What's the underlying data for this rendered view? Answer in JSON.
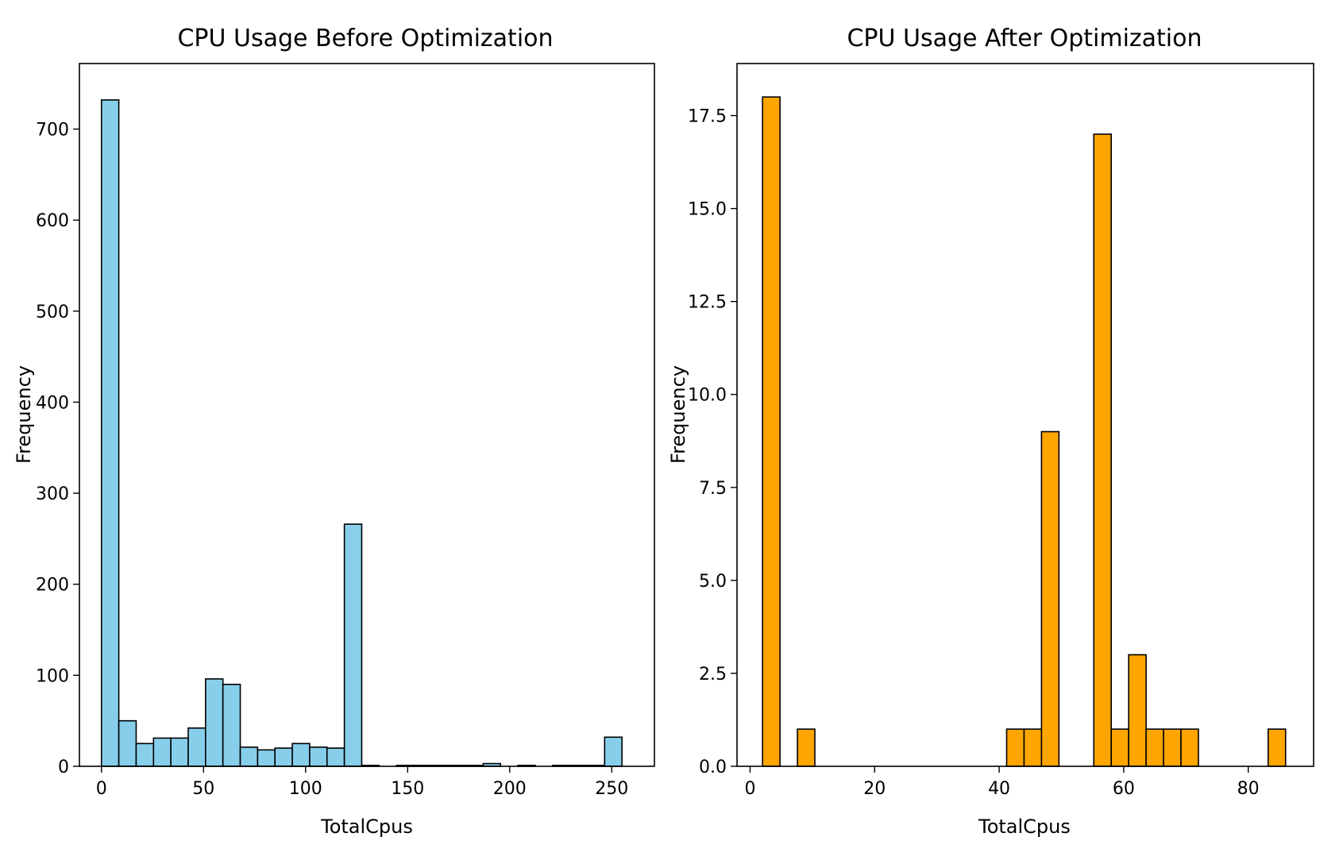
{
  "chart_data": [
    {
      "type": "bar",
      "title": "CPU Usage Before Optimization",
      "xlabel": "TotalCpus",
      "ylabel": "Frequency",
      "xlim": [
        -10.8,
        270.9
      ],
      "ylim": [
        0,
        772
      ],
      "xticks": [
        0,
        50,
        100,
        150,
        200,
        250
      ],
      "yticks": [
        0,
        100,
        200,
        300,
        400,
        500,
        600,
        700
      ],
      "color": "#87CEEB",
      "bins": [
        {
          "start": 0.0,
          "end": 8.5,
          "value": 732
        },
        {
          "start": 8.5,
          "end": 17.0,
          "value": 50
        },
        {
          "start": 17.0,
          "end": 25.5,
          "value": 25
        },
        {
          "start": 25.5,
          "end": 34.0,
          "value": 31
        },
        {
          "start": 34.0,
          "end": 42.5,
          "value": 31
        },
        {
          "start": 42.5,
          "end": 51.0,
          "value": 42
        },
        {
          "start": 51.0,
          "end": 59.5,
          "value": 96
        },
        {
          "start": 59.5,
          "end": 68.0,
          "value": 90
        },
        {
          "start": 68.0,
          "end": 76.5,
          "value": 21
        },
        {
          "start": 76.5,
          "end": 85.0,
          "value": 18
        },
        {
          "start": 85.0,
          "end": 93.5,
          "value": 20
        },
        {
          "start": 93.5,
          "end": 102.0,
          "value": 25
        },
        {
          "start": 102.0,
          "end": 110.5,
          "value": 21
        },
        {
          "start": 110.5,
          "end": 119.0,
          "value": 20
        },
        {
          "start": 119.0,
          "end": 127.5,
          "value": 266
        },
        {
          "start": 127.5,
          "end": 136.0,
          "value": 1
        },
        {
          "start": 136.0,
          "end": 144.5,
          "value": 0
        },
        {
          "start": 144.5,
          "end": 153.0,
          "value": 1
        },
        {
          "start": 153.0,
          "end": 161.5,
          "value": 1
        },
        {
          "start": 161.5,
          "end": 170.0,
          "value": 1
        },
        {
          "start": 170.0,
          "end": 178.5,
          "value": 1
        },
        {
          "start": 178.5,
          "end": 187.0,
          "value": 1
        },
        {
          "start": 187.0,
          "end": 195.5,
          "value": 3
        },
        {
          "start": 195.5,
          "end": 204.0,
          "value": 0
        },
        {
          "start": 204.0,
          "end": 212.5,
          "value": 1
        },
        {
          "start": 212.5,
          "end": 221.0,
          "value": 0
        },
        {
          "start": 221.0,
          "end": 229.5,
          "value": 1
        },
        {
          "start": 229.5,
          "end": 238.0,
          "value": 1
        },
        {
          "start": 238.0,
          "end": 246.5,
          "value": 1
        },
        {
          "start": 246.5,
          "end": 255.0,
          "value": 32
        }
      ]
    },
    {
      "type": "bar",
      "title": "CPU Usage After Optimization",
      "xlabel": "TotalCpus",
      "ylabel": "Frequency",
      "xlim": [
        -2.1,
        90.5
      ],
      "ylim": [
        0,
        18.9
      ],
      "xticks": [
        0,
        20,
        40,
        60,
        80
      ],
      "yticks": [
        0.0,
        2.5,
        5.0,
        7.5,
        10.0,
        12.5,
        15.0,
        17.5
      ],
      "ytick_labels": [
        "0.0",
        "2.5",
        "5.0",
        "7.5",
        "10.0",
        "12.5",
        "15.0",
        "17.5"
      ],
      "color": "#FFA500",
      "bins": [
        {
          "start": 2.0,
          "end": 4.8,
          "value": 18
        },
        {
          "start": 4.8,
          "end": 7.6,
          "value": 0
        },
        {
          "start": 7.6,
          "end": 10.4,
          "value": 1
        },
        {
          "start": 10.4,
          "end": 41.2,
          "value": 0
        },
        {
          "start": 41.2,
          "end": 44.0,
          "value": 1
        },
        {
          "start": 44.0,
          "end": 46.8,
          "value": 1
        },
        {
          "start": 46.8,
          "end": 49.6,
          "value": 9
        },
        {
          "start": 49.6,
          "end": 55.2,
          "value": 0
        },
        {
          "start": 55.2,
          "end": 58.0,
          "value": 17
        },
        {
          "start": 58.0,
          "end": 60.8,
          "value": 1
        },
        {
          "start": 60.8,
          "end": 63.6,
          "value": 3
        },
        {
          "start": 63.6,
          "end": 66.4,
          "value": 1
        },
        {
          "start": 66.4,
          "end": 69.2,
          "value": 1
        },
        {
          "start": 69.2,
          "end": 72.0,
          "value": 1
        },
        {
          "start": 72.0,
          "end": 83.2,
          "value": 0
        },
        {
          "start": 83.2,
          "end": 86.0,
          "value": 1
        }
      ]
    }
  ]
}
